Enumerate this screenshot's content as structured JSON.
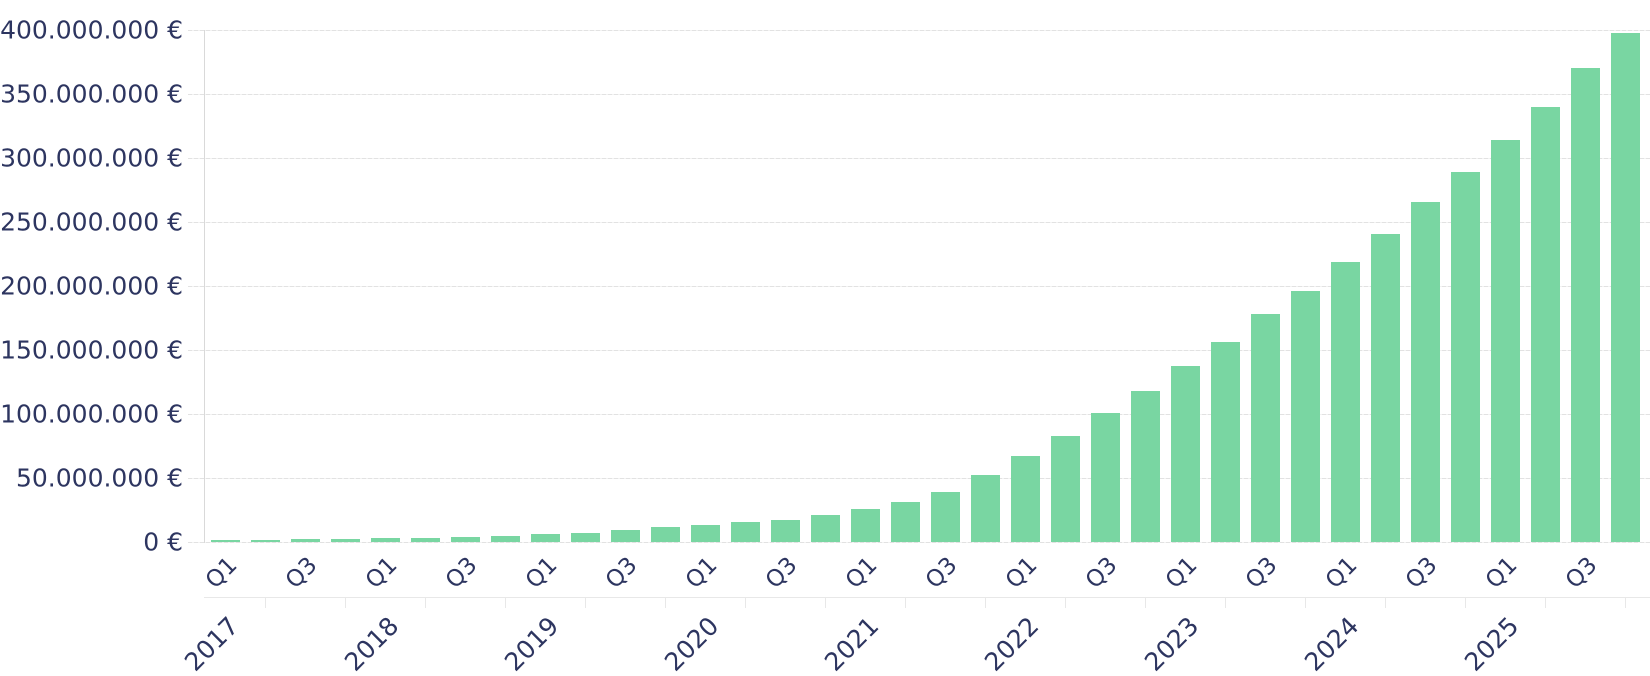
{
  "chart_data": {
    "type": "bar",
    "title": "",
    "currency": "EUR",
    "ylim": [
      0,
      400000000
    ],
    "grid": true,
    "legend": "none",
    "y_ticks": [
      {
        "value": 0,
        "label": "0 €"
      },
      {
        "value": 50000000,
        "label": "50.000.000 €"
      },
      {
        "value": 100000000,
        "label": "100.000.000 €"
      },
      {
        "value": 150000000,
        "label": "150.000.000 €"
      },
      {
        "value": 200000000,
        "label": "200.000.000 €"
      },
      {
        "value": 250000000,
        "label": "250.000.000 €"
      },
      {
        "value": 300000000,
        "label": "300.000.000 €"
      },
      {
        "value": 350000000,
        "label": "350.000.000 €"
      },
      {
        "value": 400000000,
        "label": "400.000.000 €"
      }
    ],
    "x_axis": {
      "quarter_labels_shown": [
        "Q1",
        "Q3"
      ],
      "years": [
        "2017",
        "2018",
        "2019",
        "2020",
        "2021",
        "2022",
        "2023",
        "2024",
        "2025"
      ]
    },
    "bars": [
      {
        "year": "2017",
        "quarter": "Q1",
        "tick_label": "Q1",
        "value": 1500000
      },
      {
        "year": "2017",
        "quarter": "Q2",
        "tick_label": "",
        "value": 1800000
      },
      {
        "year": "2017",
        "quarter": "Q3",
        "tick_label": "Q3",
        "value": 2100000
      },
      {
        "year": "2017",
        "quarter": "Q4",
        "tick_label": "",
        "value": 2500000
      },
      {
        "year": "2018",
        "quarter": "Q1",
        "tick_label": "Q1",
        "value": 2900000
      },
      {
        "year": "2018",
        "quarter": "Q2",
        "tick_label": "",
        "value": 3400000
      },
      {
        "year": "2018",
        "quarter": "Q3",
        "tick_label": "Q3",
        "value": 4100000
      },
      {
        "year": "2018",
        "quarter": "Q4",
        "tick_label": "",
        "value": 5000000
      },
      {
        "year": "2019",
        "quarter": "Q1",
        "tick_label": "Q1",
        "value": 6000000
      },
      {
        "year": "2019",
        "quarter": "Q2",
        "tick_label": "",
        "value": 7300000
      },
      {
        "year": "2019",
        "quarter": "Q3",
        "tick_label": "Q3",
        "value": 9200000
      },
      {
        "year": "2019",
        "quarter": "Q4",
        "tick_label": "",
        "value": 11400000
      },
      {
        "year": "2020",
        "quarter": "Q1",
        "tick_label": "Q1",
        "value": 13400000
      },
      {
        "year": "2020",
        "quarter": "Q2",
        "tick_label": "",
        "value": 15400000
      },
      {
        "year": "2020",
        "quarter": "Q3",
        "tick_label": "Q3",
        "value": 17400000
      },
      {
        "year": "2020",
        "quarter": "Q4",
        "tick_label": "",
        "value": 21000000
      },
      {
        "year": "2021",
        "quarter": "Q1",
        "tick_label": "Q1",
        "value": 26000000
      },
      {
        "year": "2021",
        "quarter": "Q2",
        "tick_label": "",
        "value": 31000000
      },
      {
        "year": "2021",
        "quarter": "Q3",
        "tick_label": "Q3",
        "value": 39000000
      },
      {
        "year": "2021",
        "quarter": "Q4",
        "tick_label": "",
        "value": 52000000
      },
      {
        "year": "2022",
        "quarter": "Q1",
        "tick_label": "Q1",
        "value": 67000000
      },
      {
        "year": "2022",
        "quarter": "Q2",
        "tick_label": "",
        "value": 83000000
      },
      {
        "year": "2022",
        "quarter": "Q3",
        "tick_label": "Q3",
        "value": 101000000
      },
      {
        "year": "2022",
        "quarter": "Q4",
        "tick_label": "",
        "value": 118000000
      },
      {
        "year": "2023",
        "quarter": "Q1",
        "tick_label": "Q1",
        "value": 137500000
      },
      {
        "year": "2023",
        "quarter": "Q2",
        "tick_label": "",
        "value": 156500000
      },
      {
        "year": "2023",
        "quarter": "Q3",
        "tick_label": "Q3",
        "value": 178000000
      },
      {
        "year": "2023",
        "quarter": "Q4",
        "tick_label": "",
        "value": 196000000
      },
      {
        "year": "2024",
        "quarter": "Q1",
        "tick_label": "Q1",
        "value": 219000000
      },
      {
        "year": "2024",
        "quarter": "Q2",
        "tick_label": "",
        "value": 241000000
      },
      {
        "year": "2024",
        "quarter": "Q3",
        "tick_label": "Q3",
        "value": 266000000
      },
      {
        "year": "2024",
        "quarter": "Q4",
        "tick_label": "",
        "value": 289000000
      },
      {
        "year": "2025",
        "quarter": "Q1",
        "tick_label": "Q1",
        "value": 314000000
      },
      {
        "year": "2025",
        "quarter": "Q2",
        "tick_label": "",
        "value": 339500000
      },
      {
        "year": "2025",
        "quarter": "Q3",
        "tick_label": "Q3",
        "value": 370500000
      },
      {
        "year": "2025",
        "quarter": "Q4",
        "tick_label": "",
        "value": 397500000
      }
    ]
  },
  "colors": {
    "bar_green": "#79d6a2",
    "text_navy": "#2d3560",
    "gridline": "#e3e3e3",
    "axis_line": "#d9d9d9",
    "year_axis_line": "#e8e8e8"
  }
}
